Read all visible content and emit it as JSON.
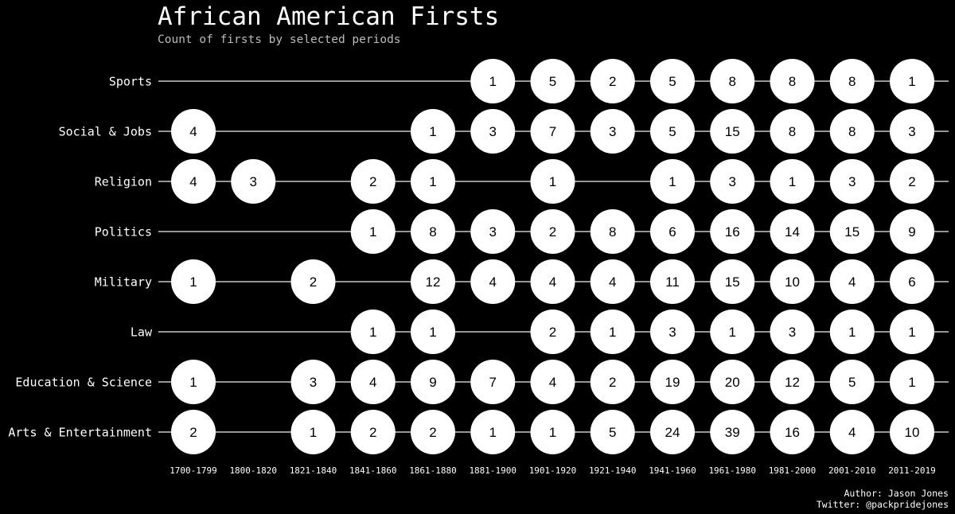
{
  "chart_data": {
    "type": "dot-matrix",
    "title": "African American Firsts",
    "subtitle": "Count of firsts by selected periods",
    "periods": [
      "1700-1799",
      "1800-1820",
      "1821-1840",
      "1841-1860",
      "1861-1880",
      "1881-1900",
      "1901-1920",
      "1921-1940",
      "1941-1960",
      "1961-1980",
      "1981-2000",
      "2001-2010",
      "2011-2019"
    ],
    "series": [
      {
        "name": "Sports",
        "values": [
          null,
          null,
          null,
          null,
          null,
          1,
          5,
          2,
          5,
          8,
          8,
          8,
          1
        ]
      },
      {
        "name": "Social & Jobs",
        "values": [
          4,
          null,
          null,
          null,
          1,
          3,
          7,
          3,
          5,
          15,
          8,
          8,
          3
        ]
      },
      {
        "name": "Religion",
        "values": [
          4,
          3,
          null,
          2,
          1,
          null,
          1,
          null,
          1,
          3,
          1,
          3,
          2
        ]
      },
      {
        "name": "Politics",
        "values": [
          null,
          null,
          null,
          1,
          8,
          3,
          2,
          8,
          6,
          16,
          14,
          15,
          9
        ]
      },
      {
        "name": "Military",
        "values": [
          1,
          null,
          2,
          null,
          12,
          4,
          4,
          4,
          11,
          15,
          10,
          4,
          6
        ]
      },
      {
        "name": "Law",
        "values": [
          null,
          null,
          null,
          1,
          1,
          null,
          2,
          1,
          3,
          1,
          3,
          1,
          1
        ]
      },
      {
        "name": "Education & Science",
        "values": [
          1,
          null,
          3,
          4,
          9,
          7,
          4,
          2,
          19,
          20,
          12,
          5,
          1
        ]
      },
      {
        "name": "Arts & Entertainment",
        "values": [
          2,
          null,
          1,
          2,
          2,
          1,
          1,
          5,
          24,
          39,
          16,
          4,
          10
        ]
      }
    ],
    "grid": false,
    "legend": "none"
  },
  "credits": {
    "author": "Author: Jason Jones",
    "twitter": "Twitter: @packpridejones"
  },
  "colors": {
    "background": "#000000",
    "circle": "#ffffff",
    "circle_text": "#000000",
    "line": "#c8c8c8",
    "label": "#ffffff",
    "subtitle": "#bbbbbb"
  }
}
